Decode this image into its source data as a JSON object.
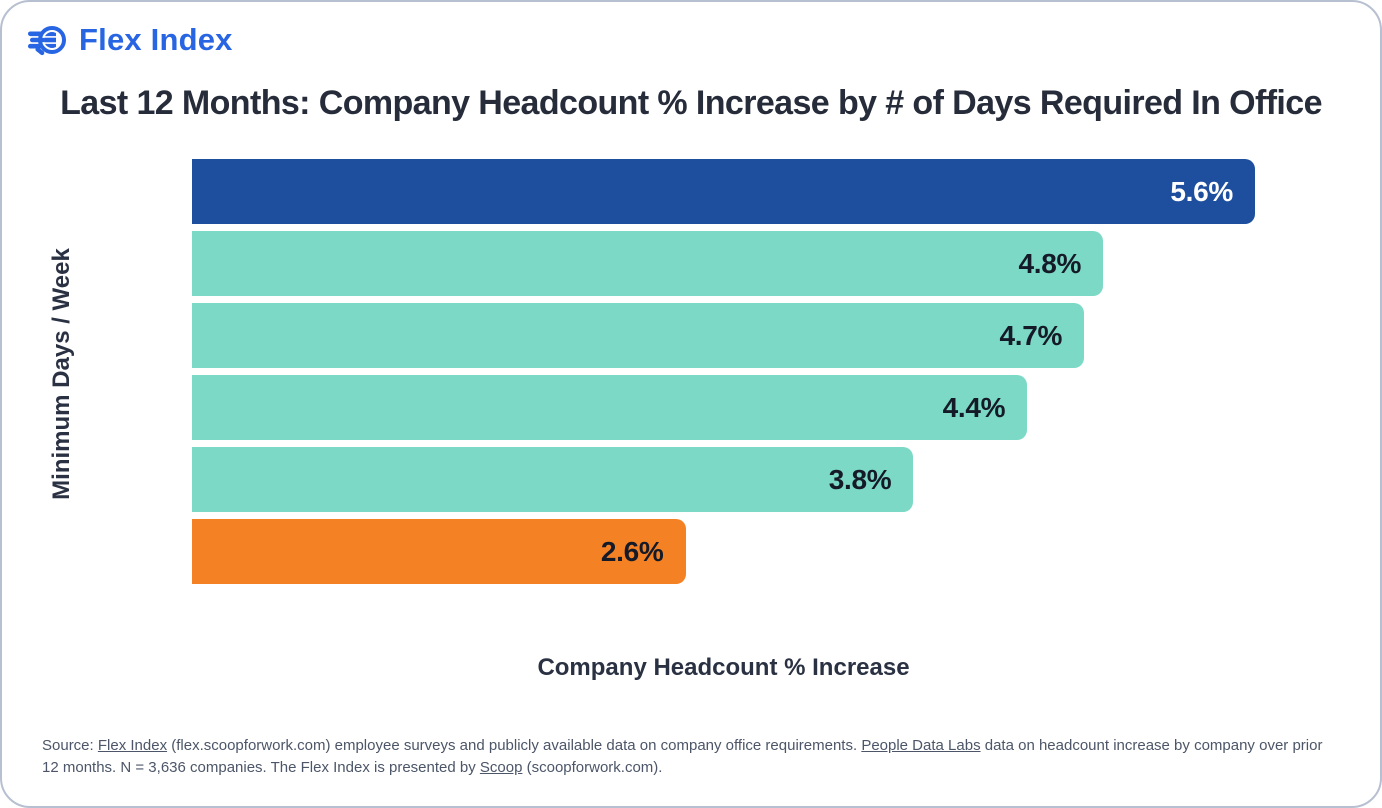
{
  "logo": {
    "text": "Flex Index"
  },
  "colors": {
    "brand_blue": "#2765e3",
    "card_border": "#b7c0d0",
    "title_text": "#262c3a",
    "axis_text": "#2a3142",
    "footnote_text": "#4c5668"
  },
  "chart_data": {
    "type": "bar",
    "orientation": "horizontal",
    "title": "Last 12 Months: Company Headcount % Increase by # of Days Required In Office",
    "xlabel": "Company Headcount % Increase",
    "ylabel": "Minimum Days / Week",
    "values": [
      5.6,
      4.8,
      4.7,
      4.4,
      3.8,
      2.6
    ],
    "labels": [
      "5.6%",
      "4.8%",
      "4.7%",
      "4.4%",
      "3.8%",
      "2.6%"
    ],
    "bar_colors": [
      "#1e4f9e",
      "#7cd9c6",
      "#7cd9c6",
      "#7cd9c6",
      "#7cd9c6",
      "#f48224"
    ],
    "label_colors": [
      "#ffffff",
      "#141a28",
      "#141a28",
      "#141a28",
      "#141a28",
      "#141a28"
    ],
    "xmax": 5.6,
    "grid": false,
    "legend": false,
    "value_labels_position": "inside-end"
  },
  "footnote": {
    "segments": [
      {
        "text": "Source: "
      },
      {
        "text": "Flex Index",
        "link": true,
        "name": "flex-index-link"
      },
      {
        "text": " (flex.scoopforwork.com) employee surveys and publicly available data on company office requirements. "
      },
      {
        "text": "People Data Labs",
        "link": true,
        "name": "people-data-labs-link"
      },
      {
        "text": " data on headcount increase by company over prior 12 months. N = 3,636 companies. The Flex Index is presented by "
      },
      {
        "text": "Scoop",
        "link": true,
        "name": "scoop-link"
      },
      {
        "text": " (scoopforwork.com)."
      }
    ]
  }
}
